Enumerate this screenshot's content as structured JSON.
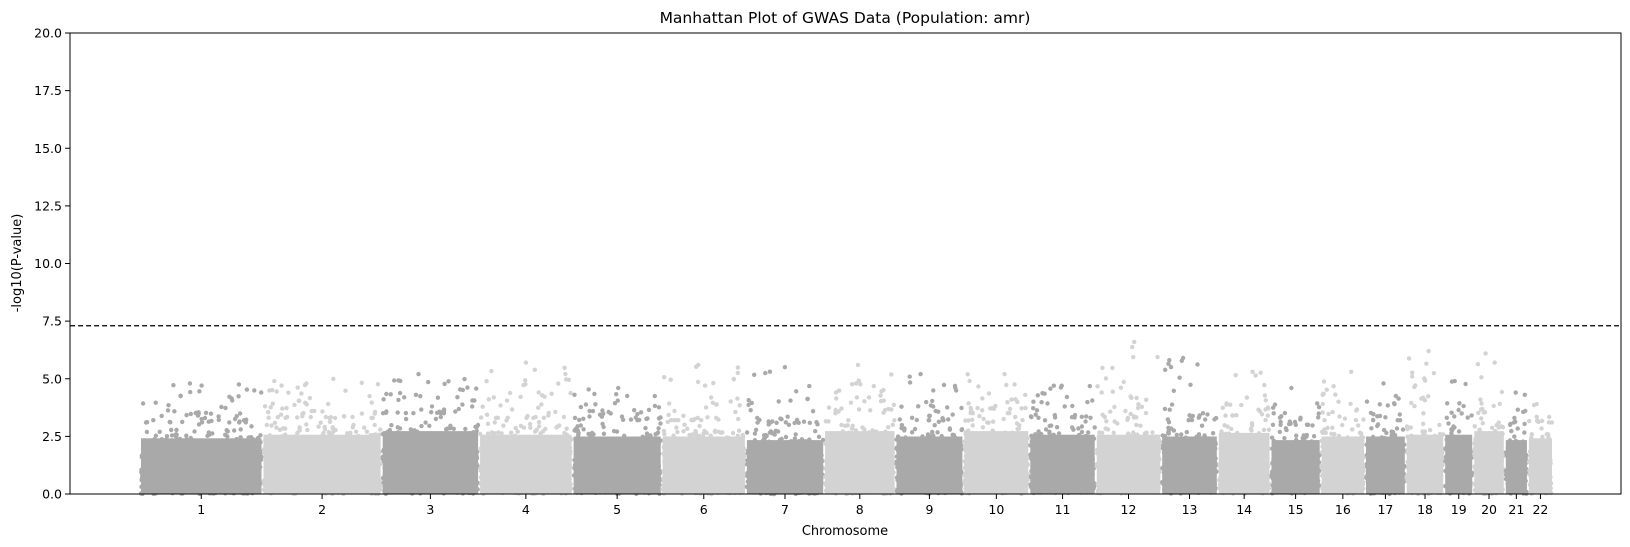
{
  "chart_data": {
    "type": "scatter",
    "title": "Manhattan Plot of GWAS Data (Population: amr)",
    "xlabel": "Chromosome",
    "ylabel": "-log10(P-value)",
    "ylim": [
      0,
      20
    ],
    "yticks": [
      "0.0",
      "2.5",
      "5.0",
      "7.5",
      "10.0",
      "12.5",
      "15.0",
      "17.5",
      "20.0"
    ],
    "significance_threshold": 7.3,
    "threshold_style": "dashed",
    "grid": false,
    "legend": "none",
    "colors": {
      "dark": "#a9a9a9",
      "light": "#d3d3d3",
      "threshold": "#000000"
    },
    "chromosomes": [
      {
        "label": "1",
        "start": 0,
        "end": 249,
        "color": "dark",
        "max": 4.8,
        "density": 3.1
      },
      {
        "label": "2",
        "start": 249,
        "end": 491,
        "color": "light",
        "max": 5.0,
        "density": 3.3
      },
      {
        "label": "3",
        "start": 491,
        "end": 689,
        "color": "dark",
        "max": 5.2,
        "density": 3.5
      },
      {
        "label": "4",
        "start": 689,
        "end": 879,
        "color": "light",
        "max": 5.7,
        "density": 3.3
      },
      {
        "label": "5",
        "start": 879,
        "end": 1060,
        "color": "dark",
        "max": 4.6,
        "density": 3.2
      },
      {
        "label": "6",
        "start": 1060,
        "end": 1231,
        "color": "light",
        "max": 5.6,
        "density": 3.2
      },
      {
        "label": "7",
        "start": 1231,
        "end": 1390,
        "color": "dark",
        "max": 5.5,
        "density": 3.0
      },
      {
        "label": "8",
        "start": 1390,
        "end": 1535,
        "color": "light",
        "max": 5.6,
        "density": 3.5
      },
      {
        "label": "9",
        "start": 1535,
        "end": 1673,
        "color": "dark",
        "max": 5.2,
        "density": 3.2
      },
      {
        "label": "10",
        "start": 1673,
        "end": 1807,
        "color": "light",
        "max": 5.2,
        "density": 3.5
      },
      {
        "label": "11",
        "start": 1807,
        "end": 1942,
        "color": "dark",
        "max": 4.7,
        "density": 3.3
      },
      {
        "label": "12",
        "start": 1942,
        "end": 2075,
        "color": "light",
        "max": 6.6,
        "density": 3.3
      },
      {
        "label": "13",
        "start": 2075,
        "end": 2190,
        "color": "dark",
        "max": 5.9,
        "density": 3.2
      },
      {
        "label": "14",
        "start": 2190,
        "end": 2297,
        "color": "light",
        "max": 5.3,
        "density": 3.4
      },
      {
        "label": "15",
        "start": 2297,
        "end": 2399,
        "color": "dark",
        "max": 4.6,
        "density": 3.0
      },
      {
        "label": "16",
        "start": 2399,
        "end": 2489,
        "color": "light",
        "max": 5.3,
        "density": 3.2
      },
      {
        "label": "17",
        "start": 2489,
        "end": 2572,
        "color": "dark",
        "max": 4.8,
        "density": 3.2
      },
      {
        "label": "18",
        "start": 2572,
        "end": 2650,
        "color": "light",
        "max": 6.2,
        "density": 3.3
      },
      {
        "label": "19",
        "start": 2650,
        "end": 2709,
        "color": "dark",
        "max": 4.9,
        "density": 3.3
      },
      {
        "label": "20",
        "start": 2709,
        "end": 2773,
        "color": "light",
        "max": 6.1,
        "density": 3.5
      },
      {
        "label": "21",
        "start": 2773,
        "end": 2820,
        "color": "dark",
        "max": 4.4,
        "density": 3.0
      },
      {
        "label": "22",
        "start": 2820,
        "end": 2871,
        "color": "light",
        "max": 3.9,
        "density": 3.1
      }
    ]
  }
}
